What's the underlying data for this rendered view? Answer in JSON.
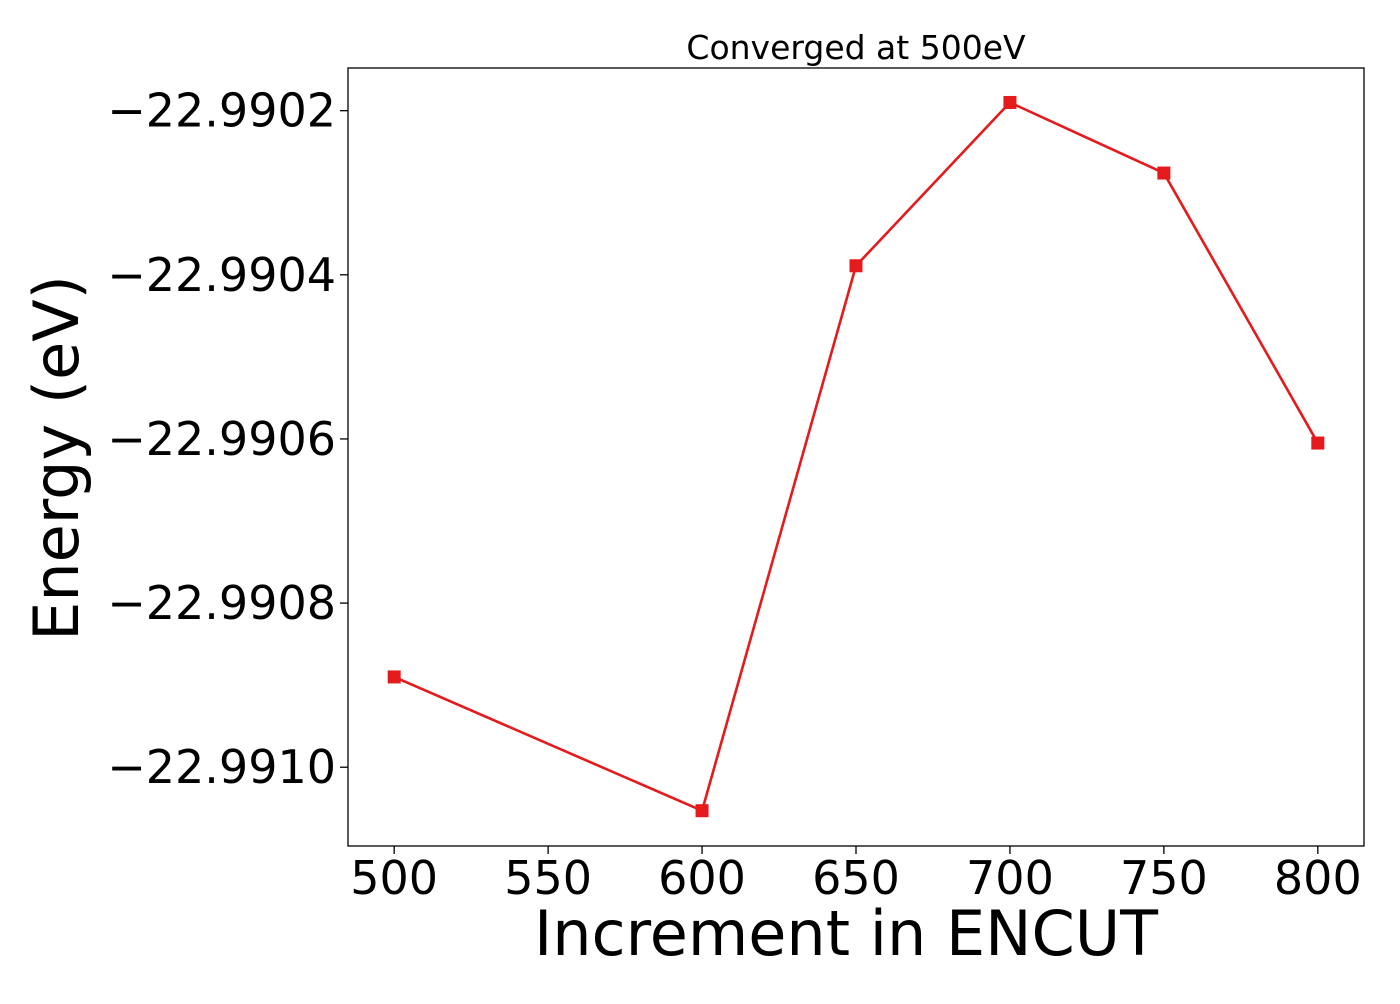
{
  "chart_data": {
    "type": "line",
    "title": "Converged at 500eV",
    "xlabel": "Increment in ENCUT",
    "ylabel": "Energy (eV)",
    "x": [
      500,
      600,
      650,
      700,
      750,
      800
    ],
    "series": [
      {
        "values": [
          -22.99089,
          -22.991053,
          -22.990389,
          -22.99019,
          -22.990276,
          -22.990605
        ],
        "color": "#e41a1c",
        "marker": "square"
      }
    ],
    "xlim": [
      485,
      815
    ],
    "ylim": [
      -22.991096,
      -22.990148
    ],
    "xticks": [
      500,
      550,
      600,
      650,
      700,
      750,
      800
    ],
    "xtick_labels": [
      "500",
      "550",
      "600",
      "650",
      "700",
      "750",
      "800"
    ],
    "yticks": [
      -22.991,
      -22.9908,
      -22.9906,
      -22.9904,
      -22.9902
    ],
    "ytick_labels": [
      "−22.9910",
      "−22.9908",
      "−22.9906",
      "−22.9904",
      "−22.9902"
    ],
    "grid": false,
    "legend": "none"
  }
}
